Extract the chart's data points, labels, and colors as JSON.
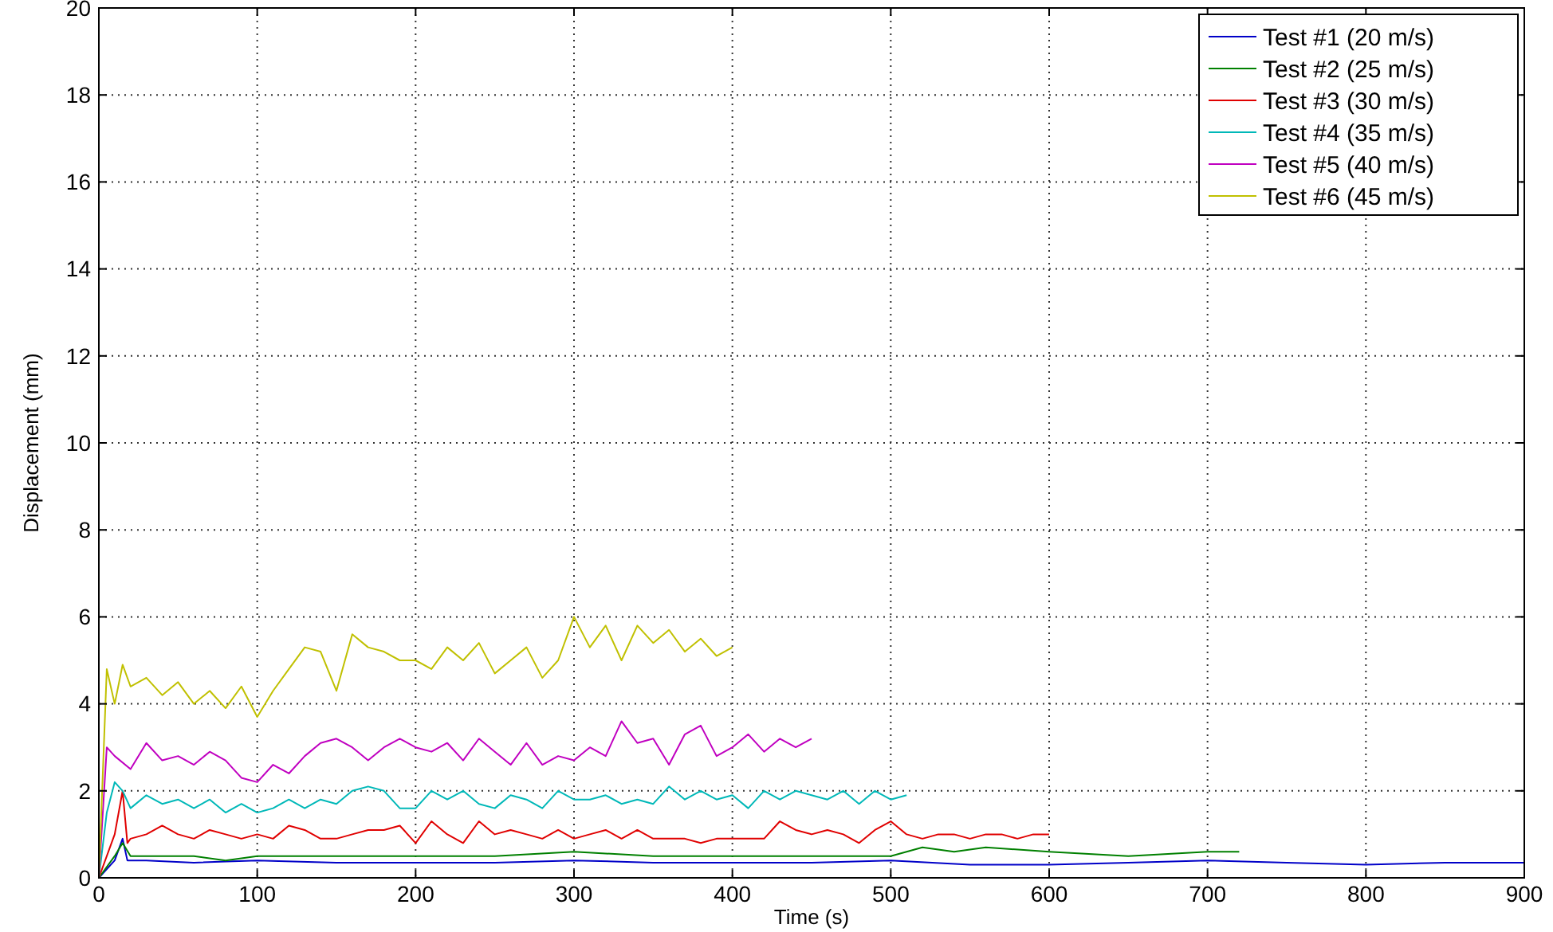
{
  "chart_data": {
    "type": "line",
    "xlabel": "Time (s)",
    "ylabel": "Displacement (mm)",
    "xlim": [
      0,
      900
    ],
    "ylim": [
      0,
      20
    ],
    "xticks": [
      0,
      100,
      200,
      300,
      400,
      500,
      600,
      700,
      800,
      900
    ],
    "yticks": [
      0,
      2,
      4,
      6,
      8,
      10,
      12,
      14,
      16,
      18,
      20
    ],
    "grid": true,
    "legend": "top right",
    "line_style": "solid",
    "series": [
      {
        "name": "Test #1 (20 m/s)",
        "color": "#0000c8",
        "x": [
          0,
          10,
          15,
          18,
          30,
          60,
          100,
          150,
          200,
          250,
          300,
          350,
          400,
          450,
          500,
          550,
          600,
          650,
          700,
          750,
          800,
          850,
          900
        ],
        "values": [
          0,
          0.4,
          0.9,
          0.4,
          0.4,
          0.35,
          0.4,
          0.35,
          0.35,
          0.35,
          0.4,
          0.35,
          0.35,
          0.35,
          0.4,
          0.3,
          0.3,
          0.35,
          0.4,
          0.35,
          0.3,
          0.35,
          0.35
        ]
      },
      {
        "name": "Test #2 (25 m/s)",
        "color": "#008000",
        "x": [
          0,
          10,
          15,
          20,
          40,
          60,
          80,
          100,
          150,
          200,
          250,
          300,
          350,
          400,
          450,
          500,
          520,
          540,
          560,
          600,
          650,
          700,
          720
        ],
        "values": [
          0,
          0.5,
          0.8,
          0.5,
          0.5,
          0.5,
          0.4,
          0.5,
          0.5,
          0.5,
          0.5,
          0.6,
          0.5,
          0.5,
          0.5,
          0.5,
          0.7,
          0.6,
          0.7,
          0.6,
          0.5,
          0.6,
          0.6
        ]
      },
      {
        "name": "Test #3 (30 m/s)",
        "color": "#e00000",
        "x": [
          0,
          10,
          15,
          18,
          20,
          30,
          40,
          50,
          60,
          70,
          80,
          90,
          100,
          110,
          120,
          130,
          140,
          150,
          160,
          170,
          180,
          190,
          200,
          210,
          220,
          230,
          240,
          250,
          260,
          270,
          280,
          290,
          300,
          310,
          320,
          330,
          340,
          350,
          360,
          370,
          380,
          390,
          400,
          410,
          420,
          430,
          440,
          450,
          460,
          470,
          480,
          490,
          500,
          510,
          520,
          530,
          540,
          550,
          560,
          570,
          580,
          590,
          600
        ],
        "values": [
          0,
          1.0,
          2.0,
          0.8,
          0.9,
          1.0,
          1.2,
          1.0,
          0.9,
          1.1,
          1.0,
          0.9,
          1.0,
          0.9,
          1.2,
          1.1,
          0.9,
          0.9,
          1.0,
          1.1,
          1.1,
          1.2,
          0.8,
          1.3,
          1.0,
          0.8,
          1.3,
          1.0,
          1.1,
          1.0,
          0.9,
          1.1,
          0.9,
          1.0,
          1.1,
          0.9,
          1.1,
          0.9,
          0.9,
          0.9,
          0.8,
          0.9,
          0.9,
          0.9,
          0.9,
          1.3,
          1.1,
          1.0,
          1.1,
          1.0,
          0.8,
          1.1,
          1.3,
          1.0,
          0.9,
          1.0,
          1.0,
          0.9,
          1.0,
          1.0,
          0.9,
          1.0,
          1.0
        ]
      },
      {
        "name": "Test #4 (35 m/s)",
        "color": "#00b8b8",
        "x": [
          0,
          5,
          10,
          15,
          20,
          30,
          40,
          50,
          60,
          70,
          80,
          90,
          100,
          110,
          120,
          130,
          140,
          150,
          160,
          170,
          180,
          190,
          200,
          210,
          220,
          230,
          240,
          250,
          260,
          270,
          280,
          290,
          300,
          310,
          320,
          330,
          340,
          350,
          360,
          370,
          380,
          390,
          400,
          410,
          420,
          430,
          440,
          450,
          460,
          470,
          480,
          490,
          500,
          510
        ],
        "values": [
          0,
          1.5,
          2.2,
          2.0,
          1.6,
          1.9,
          1.7,
          1.8,
          1.6,
          1.8,
          1.5,
          1.7,
          1.5,
          1.6,
          1.8,
          1.6,
          1.8,
          1.7,
          2.0,
          2.1,
          2.0,
          1.6,
          1.6,
          2.0,
          1.8,
          2.0,
          1.7,
          1.6,
          1.9,
          1.8,
          1.6,
          2.0,
          1.8,
          1.8,
          1.9,
          1.7,
          1.8,
          1.7,
          2.1,
          1.8,
          2.0,
          1.8,
          1.9,
          1.6,
          2.0,
          1.8,
          2.0,
          1.9,
          1.8,
          2.0,
          1.7,
          2.0,
          1.8,
          1.9
        ]
      },
      {
        "name": "Test #5 (40 m/s)",
        "color": "#c000c0",
        "x": [
          0,
          5,
          10,
          20,
          30,
          40,
          50,
          60,
          70,
          80,
          90,
          100,
          110,
          120,
          130,
          140,
          150,
          160,
          170,
          180,
          190,
          200,
          210,
          220,
          230,
          240,
          250,
          260,
          270,
          280,
          290,
          300,
          310,
          320,
          330,
          340,
          350,
          360,
          370,
          380,
          390,
          400,
          410,
          420,
          430,
          440,
          450
        ],
        "values": [
          0,
          3.0,
          2.8,
          2.5,
          3.1,
          2.7,
          2.8,
          2.6,
          2.9,
          2.7,
          2.3,
          2.2,
          2.6,
          2.4,
          2.8,
          3.1,
          3.2,
          3.0,
          2.7,
          3.0,
          3.2,
          3.0,
          2.9,
          3.1,
          2.7,
          3.2,
          2.9,
          2.6,
          3.1,
          2.6,
          2.8,
          2.7,
          3.0,
          2.8,
          3.6,
          3.1,
          3.2,
          2.6,
          3.3,
          3.5,
          2.8,
          3.0,
          3.3,
          2.9,
          3.2,
          3.0,
          3.2
        ]
      },
      {
        "name": "Test #6 (45 m/s)",
        "color": "#c0c000",
        "x": [
          0,
          5,
          10,
          15,
          20,
          30,
          40,
          50,
          60,
          70,
          80,
          90,
          100,
          110,
          120,
          130,
          140,
          150,
          160,
          170,
          180,
          190,
          200,
          210,
          220,
          230,
          240,
          250,
          260,
          270,
          280,
          290,
          300,
          310,
          320,
          330,
          340,
          350,
          360,
          370,
          380,
          390,
          400
        ],
        "values": [
          0,
          4.8,
          4.0,
          4.9,
          4.4,
          4.6,
          4.2,
          4.5,
          4.0,
          4.3,
          3.9,
          4.4,
          3.7,
          4.3,
          4.8,
          5.3,
          5.2,
          4.3,
          5.6,
          5.3,
          5.2,
          5.0,
          5.0,
          4.8,
          5.3,
          5.0,
          5.4,
          4.7,
          5.0,
          5.3,
          4.6,
          5.0,
          6.0,
          5.3,
          5.8,
          5.0,
          5.8,
          5.4,
          5.7,
          5.2,
          5.5,
          5.1,
          5.3
        ]
      }
    ]
  }
}
